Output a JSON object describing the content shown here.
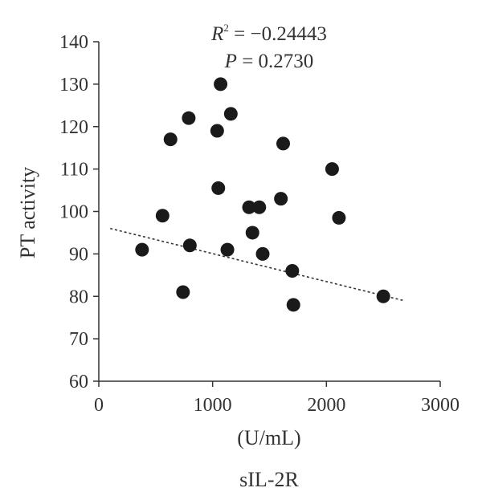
{
  "chart_data": {
    "type": "scatter",
    "annotations": {
      "r2_label": "R",
      "r2_superscript": "2",
      "r2_value": " = −0.24443",
      "p_label": "P",
      "p_value": " = 0.2730"
    },
    "xlabel": "(U/mL)",
    "subtitle": "sIL-2R",
    "ylabel": "PT activity",
    "xlim": [
      0,
      3000
    ],
    "ylim": [
      60,
      140
    ],
    "xticks": [
      0,
      1000,
      2000,
      3000
    ],
    "yticks": [
      60,
      70,
      80,
      90,
      100,
      110,
      120,
      130,
      140
    ],
    "grid": false,
    "legend": "none",
    "marker_color": "#1a1a1a",
    "trendline": {
      "style": "dotted",
      "color": "#333333",
      "start": {
        "x": 100,
        "y": 96
      },
      "end": {
        "x": 2680,
        "y": 79
      }
    },
    "points": [
      {
        "x": 380,
        "y": 91
      },
      {
        "x": 560,
        "y": 99
      },
      {
        "x": 630,
        "y": 117
      },
      {
        "x": 740,
        "y": 81
      },
      {
        "x": 790,
        "y": 122
      },
      {
        "x": 800,
        "y": 92
      },
      {
        "x": 1040,
        "y": 119
      },
      {
        "x": 1050,
        "y": 105.5
      },
      {
        "x": 1070,
        "y": 130
      },
      {
        "x": 1130,
        "y": 91
      },
      {
        "x": 1160,
        "y": 123
      },
      {
        "x": 1320,
        "y": 101
      },
      {
        "x": 1350,
        "y": 95
      },
      {
        "x": 1410,
        "y": 101
      },
      {
        "x": 1440,
        "y": 90
      },
      {
        "x": 1600,
        "y": 103
      },
      {
        "x": 1620,
        "y": 116
      },
      {
        "x": 1700,
        "y": 86
      },
      {
        "x": 1710,
        "y": 78
      },
      {
        "x": 2050,
        "y": 110
      },
      {
        "x": 2110,
        "y": 98.5
      },
      {
        "x": 2500,
        "y": 80
      }
    ]
  }
}
